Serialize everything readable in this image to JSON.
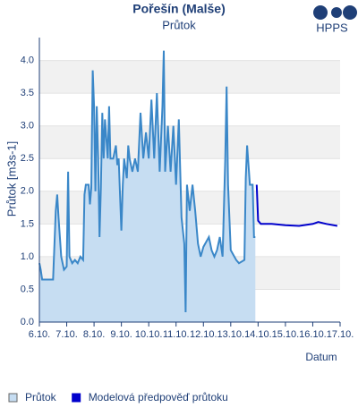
{
  "chart_data": {
    "type": "line",
    "title": "Pořešín (Malše)",
    "subtitle": "Průtok",
    "logo": "HPPS",
    "ylabel": "Průtok [m3s-1]",
    "xlabel": "Datum",
    "xlim": [
      6,
      17
    ],
    "xticks": [
      {
        "value": 6,
        "label": "6.10."
      },
      {
        "value": 7,
        "label": "7.10."
      },
      {
        "value": 8,
        "label": "8.10."
      },
      {
        "value": 9,
        "label": "9.10."
      },
      {
        "value": 10,
        "label": "10.10."
      },
      {
        "value": 11,
        "label": "11.10."
      },
      {
        "value": 12,
        "label": "12.10."
      },
      {
        "value": 13,
        "label": "13.10."
      },
      {
        "value": 14,
        "label": "14.10."
      },
      {
        "value": 15,
        "label": "15.10."
      },
      {
        "value": 16,
        "label": "16.10."
      },
      {
        "value": 17,
        "label": "17.10."
      }
    ],
    "ylim": [
      0,
      4.35
    ],
    "yticks": [
      {
        "value": 0,
        "label": "0.0"
      },
      {
        "value": 0.5,
        "label": "0.5"
      },
      {
        "value": 1,
        "label": "1.0"
      },
      {
        "value": 1.5,
        "label": "1.5"
      },
      {
        "value": 2,
        "label": "2.0"
      },
      {
        "value": 2.5,
        "label": "2.5"
      },
      {
        "value": 3,
        "label": "3.0"
      },
      {
        "value": 3.5,
        "label": "3.5"
      },
      {
        "value": 4,
        "label": "4.0"
      }
    ],
    "grid": "bands",
    "series": [
      {
        "name": "Průtok",
        "color": "#3a87c8",
        "area": "#c6ddf2",
        "x": [
          6.0,
          6.05,
          6.1,
          6.5,
          6.6,
          6.65,
          6.7,
          6.8,
          6.9,
          7.0,
          7.05,
          7.1,
          7.2,
          7.3,
          7.4,
          7.5,
          7.6,
          7.65,
          7.7,
          7.8,
          7.85,
          7.9,
          7.95,
          8.0,
          8.05,
          8.1,
          8.15,
          8.2,
          8.25,
          8.3,
          8.35,
          8.4,
          8.5,
          8.55,
          8.6,
          8.7,
          8.8,
          8.85,
          8.9,
          9.0,
          9.05,
          9.1,
          9.2,
          9.25,
          9.3,
          9.4,
          9.5,
          9.6,
          9.7,
          9.8,
          9.9,
          10.0,
          10.1,
          10.2,
          10.3,
          10.4,
          10.5,
          10.55,
          10.6,
          10.7,
          10.8,
          10.9,
          11.0,
          11.1,
          11.2,
          11.3,
          11.35,
          11.4,
          11.5,
          11.6,
          11.7,
          11.8,
          11.9,
          12.0,
          12.2,
          12.3,
          12.4,
          12.5,
          12.6,
          12.7,
          12.8,
          12.85,
          12.9,
          13.0,
          13.2,
          13.3,
          13.5,
          13.55,
          13.6,
          13.7,
          13.8,
          13.85,
          13.9
        ],
        "values": [
          0.9,
          0.8,
          0.65,
          0.65,
          1.7,
          1.95,
          1.6,
          1.0,
          0.8,
          0.85,
          2.3,
          1.0,
          0.9,
          0.95,
          0.9,
          1.0,
          0.95,
          1.95,
          2.1,
          2.1,
          1.8,
          2.05,
          3.85,
          3.3,
          2.0,
          3.3,
          2.5,
          1.3,
          2.05,
          3.2,
          2.5,
          3.1,
          2.5,
          3.3,
          2.5,
          2.5,
          2.7,
          2.4,
          2.5,
          1.4,
          2.1,
          2.5,
          2.2,
          2.7,
          2.5,
          2.3,
          2.5,
          2.3,
          3.2,
          2.5,
          2.9,
          2.5,
          3.4,
          2.5,
          3.5,
          2.3,
          3.3,
          4.15,
          2.3,
          3.0,
          2.3,
          3.0,
          2.1,
          3.1,
          1.6,
          1.2,
          0.15,
          2.1,
          1.7,
          2.1,
          1.7,
          1.2,
          1.0,
          1.15,
          1.3,
          1.1,
          1.0,
          1.1,
          1.3,
          1.0,
          2.5,
          3.6,
          2.1,
          1.1,
          0.95,
          0.9,
          0.95,
          2.2,
          2.7,
          2.1,
          2.1,
          1.3,
          1.3
        ]
      },
      {
        "name": "Modelová předpověď průtoku",
        "color": "#0000cc",
        "x": [
          13.95,
          14.0,
          14.1,
          14.5,
          15.0,
          15.5,
          16.0,
          16.2,
          16.5,
          16.9
        ],
        "values": [
          2.1,
          1.55,
          1.5,
          1.5,
          1.48,
          1.47,
          1.5,
          1.53,
          1.5,
          1.47
        ]
      }
    ]
  }
}
